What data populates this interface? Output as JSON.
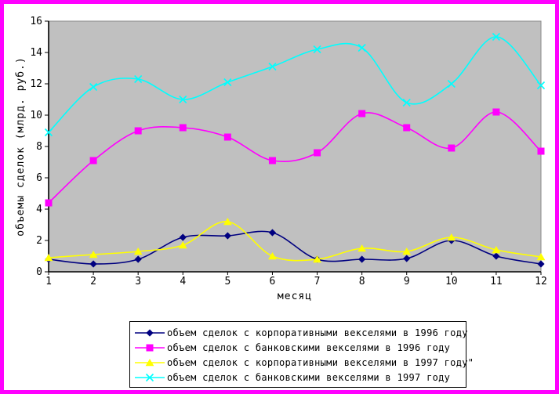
{
  "window": {
    "background_color": "#ffffff",
    "frame_border_color": "#ff00ff",
    "plot_area_color": "#c0c0c0"
  },
  "chart_data": {
    "type": "line",
    "title": "",
    "xlabel": "месяц",
    "ylabel": "объемы сделок (млрд. руб.)",
    "categories": [
      "1",
      "2",
      "3",
      "4",
      "5",
      "6",
      "7",
      "8",
      "9",
      "10",
      "11",
      "12"
    ],
    "ylim": [
      0,
      16
    ],
    "ytick_step": 2,
    "grid": false,
    "smooth": true,
    "legend_position": "bottom",
    "series": [
      {
        "name": "объем сделок с корпоративными векселями в 1996 году",
        "color": "#000080",
        "marker": "diamond",
        "values": [
          0.8,
          0.5,
          0.8,
          2.2,
          2.3,
          2.5,
          0.8,
          0.8,
          0.85,
          2.0,
          1.0,
          0.5
        ]
      },
      {
        "name": "объем сделок с банковскими векселями в 1996 году",
        "color": "#ff00ff",
        "marker": "square",
        "values": [
          4.4,
          7.1,
          9.0,
          9.2,
          8.6,
          7.1,
          7.6,
          10.1,
          9.2,
          7.9,
          10.2,
          7.7
        ]
      },
      {
        "name": "объем сделок с корпоративными векселями в 1997 году\"",
        "color": "#ffff00",
        "marker": "triangle",
        "values": [
          0.9,
          1.1,
          1.3,
          1.7,
          3.2,
          1.0,
          0.8,
          1.5,
          1.3,
          2.2,
          1.4,
          0.95
        ]
      },
      {
        "name": "объем сделок с банковскими векселями в 1997 году",
        "color": "#00ffff",
        "marker": "x",
        "values": [
          8.9,
          11.8,
          12.3,
          11.0,
          12.1,
          13.1,
          14.2,
          14.3,
          10.8,
          12.0,
          15.0,
          11.9
        ]
      }
    ]
  }
}
